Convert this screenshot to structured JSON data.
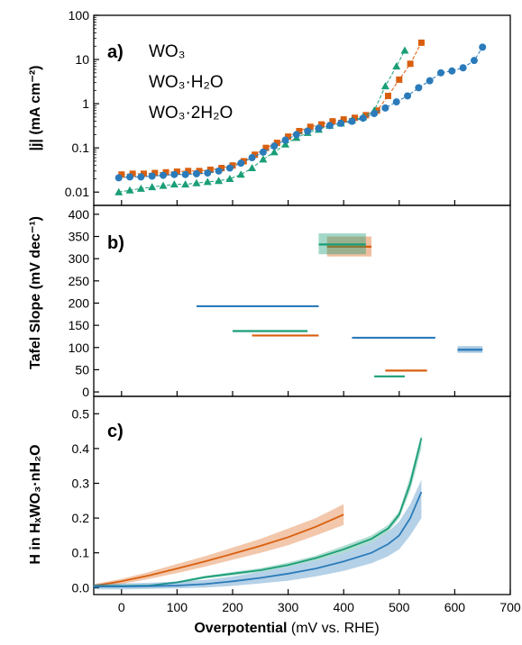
{
  "colors": {
    "wo3": "#d95f0e",
    "wo3h2o": "#1a9e77",
    "wo32h2o": "#2b7bba"
  },
  "xaxis": {
    "label_bold": "Overpotential",
    "label_rest": " (mV vs. RHE)",
    "ticks": [
      0,
      100,
      200,
      300,
      400,
      500,
      600,
      700
    ],
    "range": [
      -50,
      700
    ]
  },
  "legend": [
    {
      "key": "wo3",
      "label": "WO₃"
    },
    {
      "key": "wo3h2o",
      "label": "WO₃·H₂O"
    },
    {
      "key": "wo32h2o",
      "label": "WO₃·2H₂O"
    }
  ],
  "panels": {
    "a": {
      "label": "a)",
      "ylabel": "|j| (mA cm⁻²)"
    },
    "b": {
      "label": "b)",
      "ylabel": "Tafel Slope (mV dec⁻¹)"
    },
    "c": {
      "label": "c)",
      "ylabel": "H in HₓWO₃·nH₂O"
    }
  },
  "chart_data": [
    {
      "type": "scatter",
      "panel": "a",
      "yscale": "log",
      "ylim": [
        0.005,
        100
      ],
      "yticks": [
        0.01,
        0.1,
        1,
        10,
        100
      ],
      "ytick_labels": [
        "0.01",
        "0.1",
        "1",
        "10",
        "100"
      ],
      "series": [
        {
          "key": "wo3",
          "marker": "square",
          "x": [
            0,
            20,
            40,
            60,
            80,
            100,
            120,
            140,
            160,
            180,
            200,
            220,
            240,
            260,
            280,
            300,
            320,
            340,
            360,
            380,
            400,
            420,
            440,
            460,
            480,
            500,
            520,
            540
          ],
          "y": [
            0.025,
            0.026,
            0.026,
            0.027,
            0.028,
            0.029,
            0.03,
            0.03,
            0.032,
            0.035,
            0.04,
            0.05,
            0.07,
            0.1,
            0.13,
            0.18,
            0.24,
            0.3,
            0.34,
            0.4,
            0.44,
            0.48,
            0.55,
            0.7,
            1.5,
            3.5,
            8,
            24
          ]
        },
        {
          "key": "wo3h2o",
          "marker": "triangle",
          "x": [
            -5,
            15,
            35,
            55,
            75,
            95,
            115,
            135,
            155,
            175,
            195,
            215,
            235,
            255,
            275,
            295,
            315,
            335,
            355,
            375,
            395,
            415,
            435,
            455,
            475,
            495,
            510
          ],
          "y": [
            0.01,
            0.011,
            0.012,
            0.013,
            0.014,
            0.015,
            0.015,
            0.016,
            0.017,
            0.018,
            0.02,
            0.025,
            0.035,
            0.055,
            0.08,
            0.12,
            0.17,
            0.22,
            0.26,
            0.32,
            0.36,
            0.42,
            0.5,
            0.7,
            2.5,
            7,
            16
          ]
        },
        {
          "key": "wo32h2o",
          "marker": "circle",
          "x": [
            -5,
            15,
            35,
            55,
            75,
            95,
            115,
            135,
            155,
            175,
            195,
            215,
            235,
            255,
            275,
            295,
            315,
            335,
            355,
            375,
            395,
            415,
            435,
            455,
            475,
            495,
            515,
            535,
            555,
            575,
            595,
            615,
            635,
            650
          ],
          "y": [
            0.021,
            0.022,
            0.022,
            0.023,
            0.024,
            0.025,
            0.025,
            0.026,
            0.027,
            0.03,
            0.035,
            0.045,
            0.06,
            0.08,
            0.11,
            0.15,
            0.2,
            0.24,
            0.28,
            0.32,
            0.36,
            0.4,
            0.47,
            0.6,
            0.8,
            1.1,
            1.5,
            2.3,
            3.3,
            5,
            5.5,
            6.5,
            9.5,
            19
          ]
        }
      ]
    },
    {
      "type": "range",
      "panel": "b",
      "ylim": [
        -10,
        420
      ],
      "yticks": [
        0,
        50,
        100,
        150,
        200,
        250,
        300,
        350,
        400
      ],
      "segments": [
        {
          "key": "wo3",
          "x0": 370,
          "x1": 450,
          "y": 327,
          "band_lo": 305,
          "band_hi": 350
        },
        {
          "key": "wo3h2o",
          "x0": 355,
          "x1": 440,
          "y": 332,
          "band_lo": 310,
          "band_hi": 357
        },
        {
          "key": "wo3",
          "x0": 235,
          "x1": 355,
          "y": 127
        },
        {
          "key": "wo3h2o",
          "x0": 200,
          "x1": 335,
          "y": 137
        },
        {
          "key": "wo32h2o",
          "x0": 135,
          "x1": 355,
          "y": 193
        },
        {
          "key": "wo32h2o",
          "x0": 415,
          "x1": 565,
          "y": 122
        },
        {
          "key": "wo3",
          "x0": 475,
          "x1": 550,
          "y": 48
        },
        {
          "key": "wo3h2o",
          "x0": 455,
          "x1": 510,
          "y": 35
        },
        {
          "key": "wo32h2o",
          "x0": 605,
          "x1": 650,
          "y": 95,
          "band_lo": 88,
          "band_hi": 103
        }
      ]
    },
    {
      "type": "area",
      "panel": "c",
      "ylim": [
        -0.02,
        0.55
      ],
      "yticks": [
        0.0,
        0.1,
        0.2,
        0.3,
        0.4,
        0.5
      ],
      "ytick_labels": [
        "0.0",
        "0.1",
        "0.2",
        "0.3",
        "0.4",
        "0.5"
      ],
      "series": [
        {
          "key": "wo3",
          "x": [
            -50,
            0,
            50,
            100,
            150,
            200,
            250,
            300,
            350,
            400
          ],
          "y": [
            0.005,
            0.018,
            0.035,
            0.055,
            0.075,
            0.097,
            0.12,
            0.145,
            0.175,
            0.21
          ],
          "lo": [
            0.0,
            0.01,
            0.025,
            0.042,
            0.06,
            0.08,
            0.1,
            0.122,
            0.15,
            0.18
          ],
          "hi": [
            0.01,
            0.025,
            0.045,
            0.068,
            0.09,
            0.115,
            0.14,
            0.17,
            0.2,
            0.24
          ]
        },
        {
          "key": "wo3h2o",
          "x": [
            -50,
            0,
            50,
            100,
            150,
            200,
            250,
            300,
            350,
            400,
            450,
            480,
            500,
            520,
            540
          ],
          "y": [
            0.005,
            0.005,
            0.006,
            0.015,
            0.03,
            0.04,
            0.05,
            0.065,
            0.085,
            0.11,
            0.14,
            0.17,
            0.21,
            0.3,
            0.43
          ],
          "lo": [
            0.003,
            0.003,
            0.004,
            0.012,
            0.026,
            0.035,
            0.045,
            0.06,
            0.078,
            0.1,
            0.13,
            0.16,
            0.2,
            0.28,
            0.4
          ],
          "hi": [
            0.007,
            0.007,
            0.008,
            0.018,
            0.034,
            0.045,
            0.056,
            0.072,
            0.092,
            0.12,
            0.15,
            0.18,
            0.22,
            0.32,
            0.44
          ]
        },
        {
          "key": "wo32h2o",
          "x": [
            -50,
            0,
            50,
            100,
            150,
            200,
            250,
            300,
            350,
            400,
            450,
            480,
            500,
            520,
            540
          ],
          "y": [
            0.003,
            0.003,
            0.004,
            0.006,
            0.01,
            0.018,
            0.028,
            0.04,
            0.055,
            0.075,
            0.1,
            0.125,
            0.15,
            0.2,
            0.275
          ],
          "lo": [
            -0.005,
            -0.005,
            -0.004,
            -0.002,
            0.0,
            0.005,
            0.012,
            0.02,
            0.032,
            0.048,
            0.07,
            0.09,
            0.11,
            0.15,
            0.2
          ],
          "hi": [
            0.01,
            0.012,
            0.014,
            0.017,
            0.022,
            0.032,
            0.045,
            0.06,
            0.078,
            0.1,
            0.13,
            0.16,
            0.19,
            0.24,
            0.31
          ]
        }
      ]
    }
  ]
}
